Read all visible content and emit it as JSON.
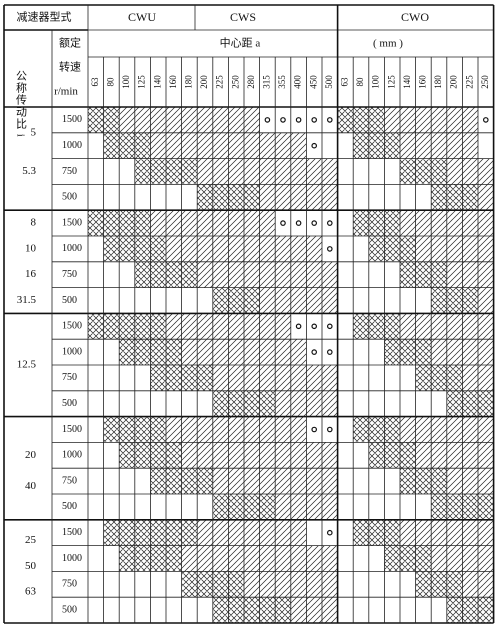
{
  "header": {
    "type_label": "减速器型式",
    "types": [
      "CWU",
      "CWS",
      "CWO"
    ],
    "ratio_label": "公称传动比 i",
    "speed_label": [
      "额定",
      "转速"
    ],
    "speed_unit": "r/min",
    "distance_label": "中心距 a",
    "distance_unit": "( mm )"
  },
  "table": {
    "columns_a": [
      63,
      80,
      100,
      125,
      140,
      160,
      180,
      200,
      225,
      250,
      280,
      315,
      355,
      400,
      450,
      500
    ],
    "columns_b": [
      63,
      80,
      100,
      125,
      140,
      160,
      180,
      200,
      225,
      250
    ],
    "groups": [
      {
        "ratios": [
          5,
          5.3
        ],
        "speeds": [
          1500,
          1000,
          750,
          500
        ]
      },
      {
        "ratios": [
          8,
          10,
          16,
          31.5
        ],
        "speeds": [
          1500,
          1000,
          750,
          500
        ]
      },
      {
        "ratios": [
          12.5
        ],
        "speeds": [
          1500,
          1000,
          750,
          500
        ]
      },
      {
        "ratios": [
          20,
          40
        ],
        "speeds": [
          1500,
          1000,
          750,
          500
        ]
      },
      {
        "ratios": [
          25,
          50,
          63
        ],
        "speeds": [
          1500,
          1000,
          750,
          500
        ]
      }
    ]
  }
}
